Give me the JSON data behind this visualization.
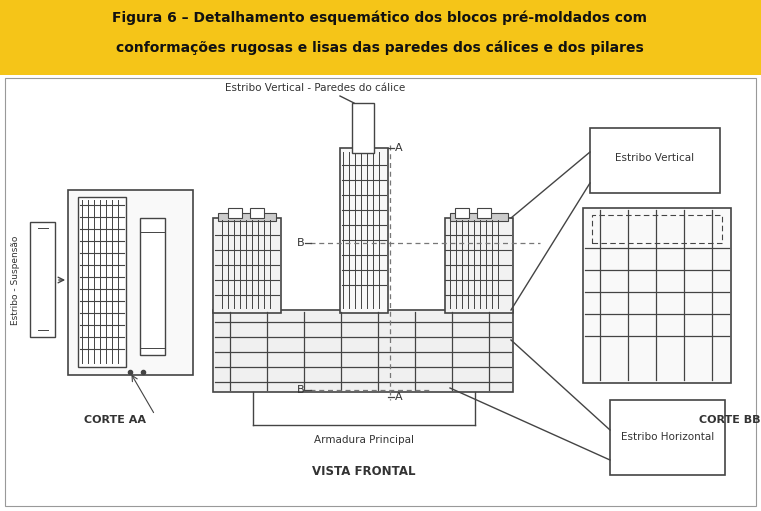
{
  "title_line1": "Figura 6 – Detalhamento esquemático dos blocos pré-moldados com",
  "title_line2": "conformações rugosas e lisas das paredes dos cálices e dos pilares",
  "header_bg": "#F5C518",
  "header_text_color": "#111111",
  "body_bg": "#ffffff",
  "bc": "#444444",
  "lc": "#333333",
  "labels": {
    "estribo_vertical_calice": "Estribo Vertical - Paredes do cálice",
    "estribo_vertical": "Estribo Vertical",
    "estribs_suspensao": "Estribo - Suspensão",
    "corte_aa": "CORTE AA",
    "corte_bb": "CORTE BB",
    "armadura_principal": "Armadura Principal",
    "vista_frontal": "VISTA FRONTAL",
    "estribo_horizontal": "Estribo Horizontal"
  }
}
